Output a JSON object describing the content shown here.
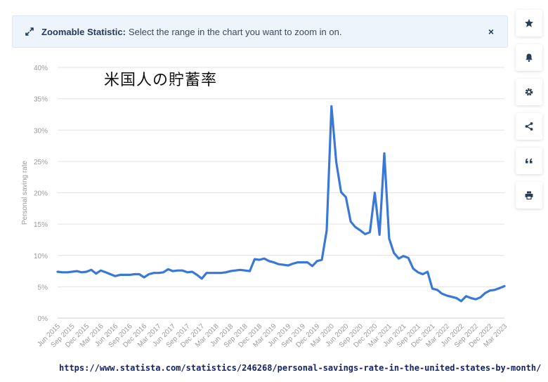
{
  "banner": {
    "title": "Zoomable Statistic:",
    "text": "Select the range in the chart you want to zoom in on.",
    "close": "×"
  },
  "toolbar": {
    "icons": [
      "star-icon",
      "bell-icon",
      "gear-icon",
      "share-icon",
      "quote-icon",
      "print-icon"
    ]
  },
  "overlay_title": "米国人の貯蓄率",
  "source_url": "https://www.statista.com/statistics/246268/personal-savings-rate-in-the-united-states-by-month/",
  "colors": {
    "line": "#3a78d8",
    "grid": "#e3e3e3",
    "tick": "#9a9a9a",
    "banner_bg": "#eef4fb"
  },
  "chart_data": {
    "type": "line",
    "ylabel": "Personal saving rate",
    "xlabel": "",
    "ylim": [
      0,
      40
    ],
    "yticks": [
      "0%",
      "5%",
      "10%",
      "15%",
      "20%",
      "25%",
      "30%",
      "35%",
      "40%"
    ],
    "grid": true,
    "x_start": "Jun 2015",
    "x_end": "Apr 2023",
    "xticks": [
      "Jun 2015",
      "Sep 2015",
      "Dec 2015",
      "Mar 2016",
      "Jun 2016",
      "Sep 2016",
      "Dec 2016",
      "Mar 2017",
      "Jun 2017",
      "Sep 2017",
      "Dec 2017",
      "Mar 2018",
      "Jun 2018",
      "Sep 2018",
      "Dec 2018",
      "Mar 2019",
      "Jun 2019",
      "Sep 2019",
      "Dec 2019",
      "Mar 2020",
      "Jun 2020",
      "Sep 2020",
      "Dec 2020",
      "Mar 2021",
      "Jun 2021",
      "Sep 2021",
      "Dec 2021",
      "Mar 2022",
      "Jun 2022",
      "Sep 2022",
      "Dec 2022",
      "Mar 2023"
    ],
    "series": [
      {
        "values": [
          7.4,
          7.3,
          7.3,
          7.4,
          7.5,
          7.3,
          7.4,
          7.7,
          7.1,
          7.6,
          7.3,
          7.0,
          6.7,
          6.9,
          6.9,
          6.9,
          7.0,
          7.0,
          6.5,
          7.0,
          7.2,
          7.2,
          7.3,
          7.8,
          7.5,
          7.6,
          7.6,
          7.3,
          7.4,
          6.9,
          6.3,
          7.2,
          7.2,
          7.2,
          7.2,
          7.3,
          7.5,
          7.6,
          7.7,
          7.6,
          7.5,
          9.4,
          9.3,
          9.5,
          9.1,
          8.9,
          8.6,
          8.5,
          8.4,
          8.7,
          8.9,
          8.9,
          8.9,
          8.3,
          9.1,
          9.3,
          14.0,
          33.8,
          24.9,
          20.1,
          19.3,
          15.4,
          14.5,
          14.0,
          13.4,
          13.7,
          20.0,
          13.3,
          26.3,
          12.7,
          10.4,
          9.5,
          9.9,
          9.6,
          7.9,
          7.3,
          7.0,
          7.4,
          4.7,
          4.5,
          3.9,
          3.6,
          3.4,
          3.2,
          2.7,
          3.5,
          3.2,
          3.0,
          3.3,
          4.0,
          4.4,
          4.5,
          4.8,
          5.1
        ]
      }
    ]
  }
}
